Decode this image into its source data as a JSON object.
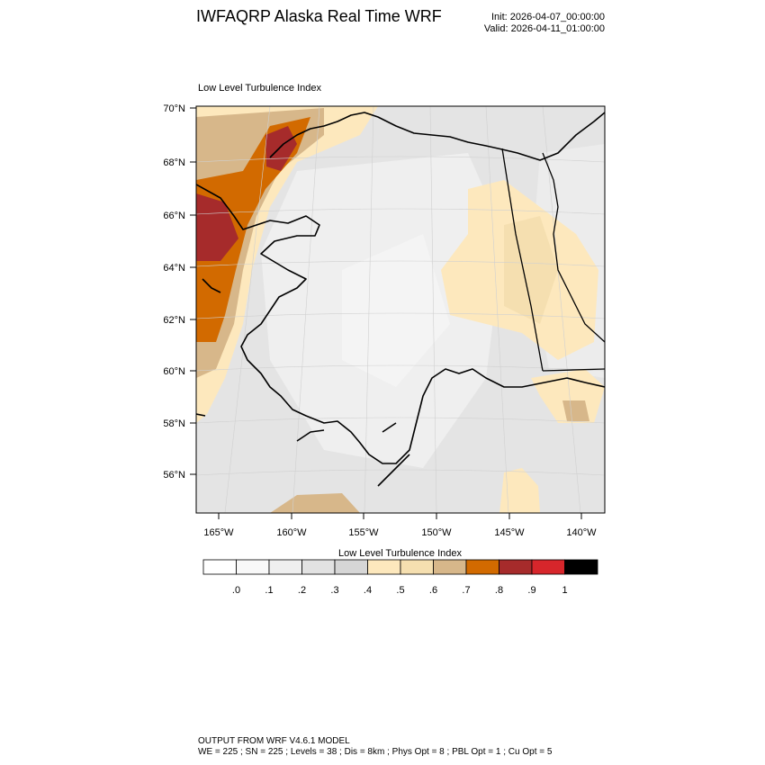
{
  "header": {
    "title": "IWFAQRP Alaska Real Time WRF",
    "init": "Init: 2026-04-07_00:00:00",
    "valid": "Valid: 2026-04-11_01:00:00"
  },
  "map": {
    "field_title": "Low Level Turbulence Index",
    "lat_labels": [
      "70°N",
      "68°N",
      "66°N",
      "64°N",
      "62°N",
      "60°N",
      "58°N",
      "56°N"
    ],
    "lon_labels": [
      "165°W",
      "160°W",
      "155°W",
      "150°W",
      "145°W",
      "140°W"
    ],
    "region": "Alaska"
  },
  "colorbar": {
    "title": "Low Level Turbulence Index",
    "labels": [
      ".0",
      ".1",
      ".2",
      ".3",
      ".4",
      ".5",
      ".6",
      ".7",
      ".8",
      ".9",
      "1"
    ],
    "colors": [
      "#ffffff",
      "#f8f8f8",
      "#efefef",
      "#e2e2e2",
      "#d6d6d6",
      "#fde8bd",
      "#f5dfb0",
      "#d7b78a",
      "#d26a00",
      "#a62b2b",
      "#d7262b",
      "#000000"
    ]
  },
  "footer": {
    "line1": "OUTPUT FROM WRF V4.6.1 MODEL",
    "line2": "WE = 225 ; SN = 225 ; Levels = 38 ; Dis = 8km ; Phys Opt = 8 ; PBL Opt = 1 ; Cu Opt = 5"
  }
}
